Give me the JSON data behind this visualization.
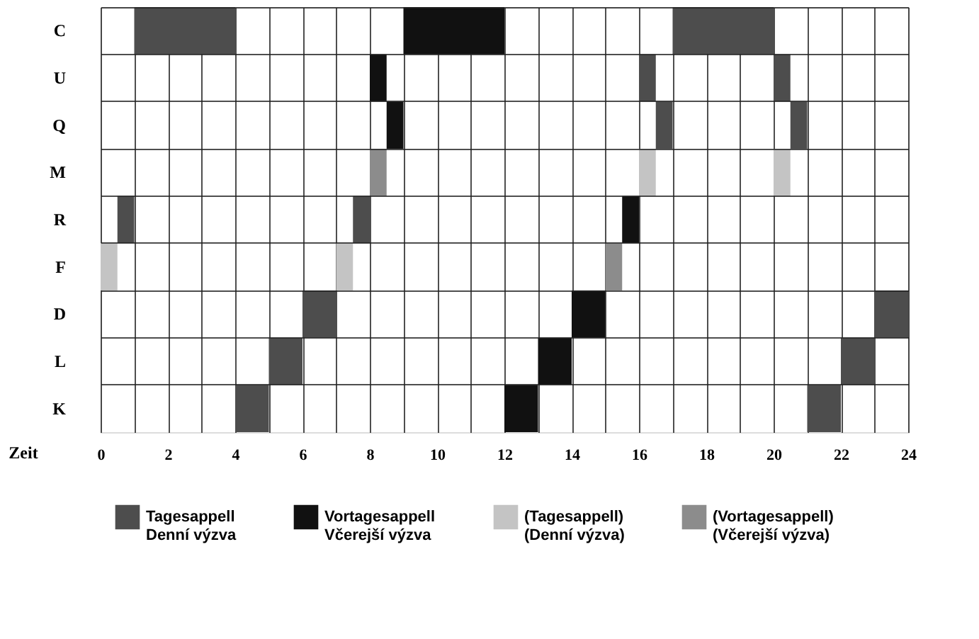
{
  "chart_data": {
    "type": "bar",
    "orientation": "horizontal",
    "xlabel": "Zeit",
    "categories": [
      "C",
      "U",
      "Q",
      "M",
      "R",
      "F",
      "D",
      "L",
      "K"
    ],
    "xlim": [
      0,
      24
    ],
    "xticks": [
      0,
      {
        "value": 1,
        "label": null
      },
      2,
      {
        "value": 3,
        "label": null
      },
      4,
      {
        "value": 5,
        "label": null
      },
      6,
      {
        "value": 7,
        "label": null
      },
      8,
      {
        "value": 9,
        "label": null
      },
      10,
      {
        "value": 11,
        "label": null
      },
      12,
      {
        "value": 13,
        "label": null
      },
      14,
      {
        "value": 15,
        "label": null
      },
      16,
      {
        "value": 17,
        "label": null
      },
      18,
      {
        "value": 19,
        "label": null
      },
      20,
      {
        "value": 21,
        "label": null
      },
      22,
      {
        "value": 23,
        "label": null
      },
      24
    ],
    "grid": true,
    "legend": "bottom",
    "series": [
      {
        "name": "Tagesappell\nDenní výzva",
        "color": "#4d4d4d",
        "base": [
          1,
          16,
          16.5,
          null,
          0.5,
          null,
          6,
          5,
          4
        ],
        "values": [
          3,
          0.5,
          0.5,
          null,
          0.5,
          null,
          1,
          1,
          1
        ]
      },
      {
        "color": "#4d4d4d",
        "base": [
          17,
          20,
          20.5,
          null,
          7.5,
          null,
          23,
          22,
          21
        ],
        "values": [
          3,
          0.5,
          0.5,
          null,
          0.5,
          null,
          1,
          1,
          1
        ]
      },
      {
        "name": "Vortagesappell\nVčerejší výzva",
        "color": "#111111",
        "base": [
          9,
          8,
          8.5,
          null,
          15.5,
          null,
          14,
          13,
          12
        ],
        "values": [
          3,
          0.5,
          0.5,
          null,
          0.5,
          null,
          1,
          1,
          1
        ]
      },
      {
        "name": "(Tagesappell)\n(Denní výzva)",
        "color": "#c4c4c4",
        "base": [
          null,
          null,
          null,
          16,
          null,
          0,
          null,
          null,
          null
        ],
        "values": [
          null,
          null,
          null,
          0.5,
          null,
          0.5,
          null,
          null,
          null
        ]
      },
      {
        "color": "#c4c4c4",
        "base": [
          null,
          null,
          null,
          20,
          null,
          7,
          null,
          null,
          null
        ],
        "values": [
          null,
          null,
          null,
          0.5,
          null,
          0.5,
          null,
          null,
          null
        ]
      },
      {
        "name": "(Vortagesappell)\n(Včerejší výzva)",
        "color": "#8c8c8c",
        "base": [
          null,
          null,
          null,
          8,
          null,
          15,
          null,
          null,
          null
        ],
        "values": [
          null,
          null,
          null,
          0.5,
          null,
          0.5,
          null,
          null,
          null
        ]
      }
    ]
  }
}
